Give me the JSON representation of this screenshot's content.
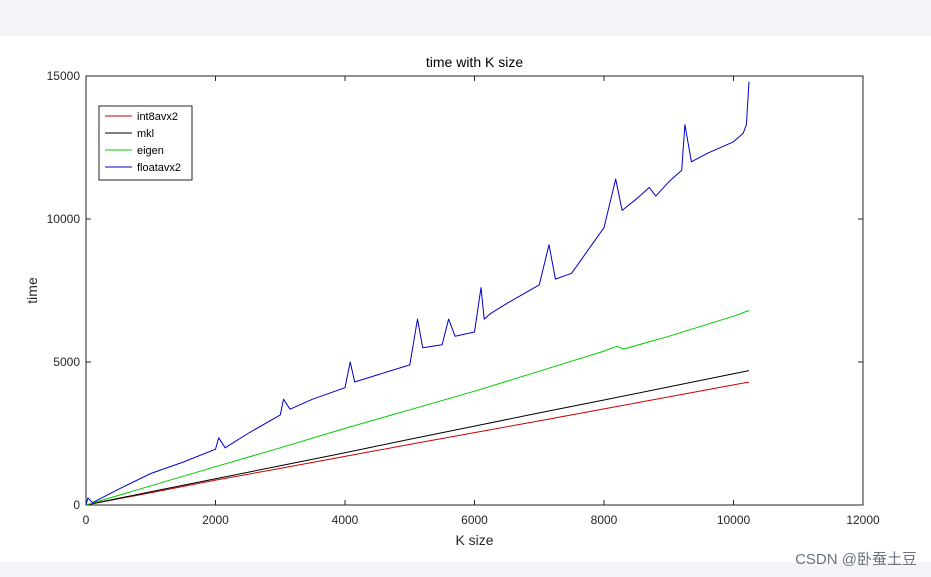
{
  "watermark": "CSDN @卧蚕土豆",
  "chart_data": {
    "type": "line",
    "title": "time with K size",
    "xlabel": "K size",
    "ylabel": "time",
    "xlim": [
      0,
      12000
    ],
    "ylim": [
      0,
      15000
    ],
    "xticks": [
      0,
      2000,
      4000,
      6000,
      8000,
      10000,
      12000
    ],
    "yticks": [
      0,
      5000,
      10000,
      15000
    ],
    "xtick_labels": [
      "0",
      "2000",
      "4000",
      "6000",
      "8000",
      "10000",
      "12000"
    ],
    "ytick_labels": [
      "0",
      "5000",
      "10000",
      "15000"
    ],
    "grid": false,
    "legend_position": "top-left",
    "series": [
      {
        "name": "int8avx2",
        "color": "#cc0000",
        "x": [
          0,
          1000,
          2000,
          3000,
          4000,
          5000,
          6000,
          7000,
          8000,
          9000,
          10000,
          10240
        ],
        "y": [
          0,
          430,
          870,
          1280,
          1700,
          2120,
          2530,
          2940,
          3360,
          3780,
          4200,
          4300
        ]
      },
      {
        "name": "mkl",
        "color": "#000000",
        "x": [
          0,
          1000,
          2000,
          3000,
          4000,
          5000,
          6000,
          7000,
          8000,
          9000,
          10000,
          10240
        ],
        "y": [
          0,
          460,
          920,
          1370,
          1830,
          2300,
          2760,
          3220,
          3670,
          4130,
          4590,
          4700
        ]
      },
      {
        "name": "eigen",
        "color": "#00cc00",
        "x": [
          0,
          1000,
          2000,
          3000,
          4000,
          5000,
          6000,
          7000,
          8000,
          8200,
          8300,
          9000,
          10000,
          10240
        ],
        "y": [
          0,
          670,
          1340,
          2000,
          2680,
          3330,
          3980,
          4680,
          5380,
          5550,
          5450,
          5900,
          6600,
          6800
        ]
      },
      {
        "name": "floatavx2",
        "color": "#0000cc",
        "x": [
          0,
          30,
          100,
          500,
          1000,
          1500,
          2000,
          2050,
          2150,
          2500,
          3000,
          3050,
          3150,
          3500,
          4000,
          4080,
          4150,
          4500,
          5000,
          5120,
          5200,
          5500,
          5600,
          5700,
          6000,
          6100,
          6150,
          6250,
          6500,
          7000,
          7150,
          7250,
          7500,
          8000,
          8180,
          8280,
          8500,
          8700,
          8800,
          9000,
          9200,
          9250,
          9350,
          9600,
          10000,
          10150,
          10200,
          10240
        ],
        "y": [
          0,
          250,
          80,
          550,
          1100,
          1500,
          1950,
          2350,
          2000,
          2500,
          3150,
          3700,
          3350,
          3700,
          4100,
          5000,
          4300,
          4550,
          4900,
          6500,
          5500,
          5600,
          6500,
          5900,
          6050,
          7600,
          6500,
          6700,
          7050,
          7700,
          9100,
          7900,
          8100,
          9700,
          11400,
          10300,
          10700,
          11100,
          10800,
          11300,
          11700,
          13300,
          12000,
          12300,
          12700,
          13000,
          13300,
          14800
        ]
      }
    ]
  }
}
